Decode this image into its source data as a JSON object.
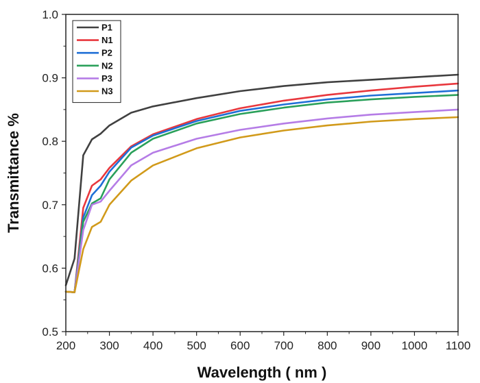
{
  "chart_data": {
    "type": "line",
    "title": "",
    "xlabel": "Wavelength ( nm )",
    "ylabel": "Transmittance %",
    "xlim": [
      200,
      1100
    ],
    "ylim": [
      0.5,
      1.0
    ],
    "x_ticks": [
      "200",
      "300",
      "400",
      "500",
      "600",
      "700",
      "800",
      "900",
      "1000",
      "1100"
    ],
    "y_ticks": [
      "0.5",
      "0.6",
      "0.7",
      "0.8",
      "0.9",
      "1.0"
    ],
    "grid": false,
    "legend_position": "top-left",
    "series": [
      {
        "name": "P1",
        "color": "#404040",
        "x": [
          200,
          220,
          240,
          260,
          280,
          300,
          350,
          400,
          500,
          600,
          700,
          800,
          900,
          1000,
          1100
        ],
        "y": [
          0.573,
          0.615,
          0.778,
          0.803,
          0.812,
          0.825,
          0.845,
          0.855,
          0.868,
          0.879,
          0.887,
          0.893,
          0.897,
          0.901,
          0.905
        ]
      },
      {
        "name": "N1",
        "color": "#e8373d",
        "x": [
          200,
          220,
          240,
          260,
          280,
          300,
          350,
          400,
          500,
          600,
          700,
          800,
          900,
          1000,
          1100
        ],
        "y": [
          0.563,
          0.562,
          0.695,
          0.73,
          0.74,
          0.758,
          0.792,
          0.811,
          0.835,
          0.852,
          0.864,
          0.873,
          0.88,
          0.886,
          0.891
        ]
      },
      {
        "name": "P2",
        "color": "#1f6fd6",
        "x": [
          200,
          220,
          240,
          260,
          280,
          300,
          350,
          400,
          500,
          600,
          700,
          800,
          900,
          1000,
          1100
        ],
        "y": [
          0.563,
          0.562,
          0.68,
          0.715,
          0.73,
          0.752,
          0.79,
          0.809,
          0.832,
          0.848,
          0.858,
          0.866,
          0.872,
          0.876,
          0.88
        ]
      },
      {
        "name": "N2",
        "color": "#2aa05a",
        "x": [
          200,
          220,
          240,
          260,
          280,
          300,
          350,
          400,
          500,
          600,
          700,
          800,
          900,
          1000,
          1100
        ],
        "y": [
          0.563,
          0.562,
          0.673,
          0.702,
          0.71,
          0.74,
          0.782,
          0.804,
          0.828,
          0.843,
          0.853,
          0.861,
          0.866,
          0.87,
          0.873
        ]
      },
      {
        "name": "P3",
        "color": "#b57ce6",
        "x": [
          200,
          220,
          240,
          260,
          280,
          300,
          350,
          400,
          500,
          600,
          700,
          800,
          900,
          1000,
          1100
        ],
        "y": [
          0.563,
          0.562,
          0.66,
          0.7,
          0.705,
          0.722,
          0.762,
          0.782,
          0.804,
          0.818,
          0.828,
          0.836,
          0.842,
          0.846,
          0.85
        ]
      },
      {
        "name": "N3",
        "color": "#d19a1a",
        "x": [
          200,
          220,
          240,
          260,
          280,
          300,
          350,
          400,
          500,
          600,
          700,
          800,
          900,
          1000,
          1100
        ],
        "y": [
          0.563,
          0.562,
          0.63,
          0.665,
          0.673,
          0.7,
          0.738,
          0.762,
          0.789,
          0.806,
          0.817,
          0.825,
          0.831,
          0.835,
          0.838
        ]
      }
    ]
  }
}
